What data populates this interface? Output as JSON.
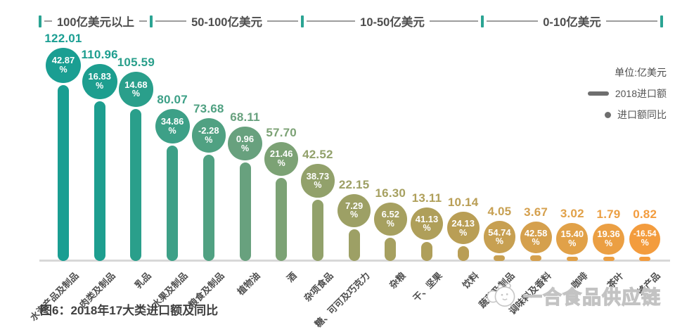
{
  "legend": {
    "unit": "单位:亿美元",
    "items": [
      {
        "label": "2018进口额",
        "marker": "thick-line"
      },
      {
        "label": "进口额同比",
        "marker": "dot"
      }
    ]
  },
  "caption": "图6：2018年17大类进口额及同比",
  "watermark": {
    "brand": "一合食品供应链",
    "logo": "mascot-face-icon"
  },
  "chart_data": {
    "type": "bar",
    "subtype": "lollipop-with-dot-labels",
    "title": "图6：2018年17大类进口额及同比",
    "unit": "亿美元",
    "grid": false,
    "legend_position": "right",
    "ylim": [
      0,
      130
    ],
    "categories": [
      "水海产品及制品",
      "肉类及制品",
      "乳品",
      "水果及制品",
      "粮食及制品",
      "植物油",
      "酒",
      "杂项食品",
      "糖、可可及巧克力",
      "杂粮",
      "干、坚果",
      "饮料",
      "蔬菜及制品",
      "调味料及香料",
      "咖啡",
      "茶叶",
      "蜂产品"
    ],
    "series": [
      {
        "name": "2018进口额",
        "values": [
          122.01,
          110.96,
          105.59,
          80.07,
          73.68,
          68.11,
          57.7,
          42.52,
          22.15,
          16.3,
          13.11,
          10.14,
          4.05,
          3.67,
          3.02,
          1.79,
          0.82
        ]
      },
      {
        "name": "进口额同比(%)",
        "values": [
          42.87,
          16.83,
          14.68,
          34.86,
          -2.28,
          0.96,
          21.46,
          38.73,
          7.29,
          6.52,
          41.13,
          24.13,
          54.74,
          42.58,
          15.4,
          19.36,
          -16.54
        ]
      }
    ],
    "groups": [
      {
        "label": "100亿美元以上",
        "from": 0,
        "to": 2
      },
      {
        "label": "50-100亿美元",
        "from": 3,
        "to": 6
      },
      {
        "label": "10-50亿美元",
        "from": 7,
        "to": 11
      },
      {
        "label": "0-10亿美元",
        "from": 12,
        "to": 16
      }
    ],
    "colors": [
      "#1A9E92",
      "#1D9E8F",
      "#2A9F8B",
      "#3DA087",
      "#50A182",
      "#68A17E",
      "#7CA275",
      "#92A16B",
      "#9DA065",
      "#A6A060",
      "#AF9F5A",
      "#B99E55",
      "#C7A052",
      "#D5A04D",
      "#E1A148",
      "#EB9F43",
      "#F39C3E"
    ],
    "separator_color": "#2BA493",
    "axis_color": "#d8d8d8"
  }
}
